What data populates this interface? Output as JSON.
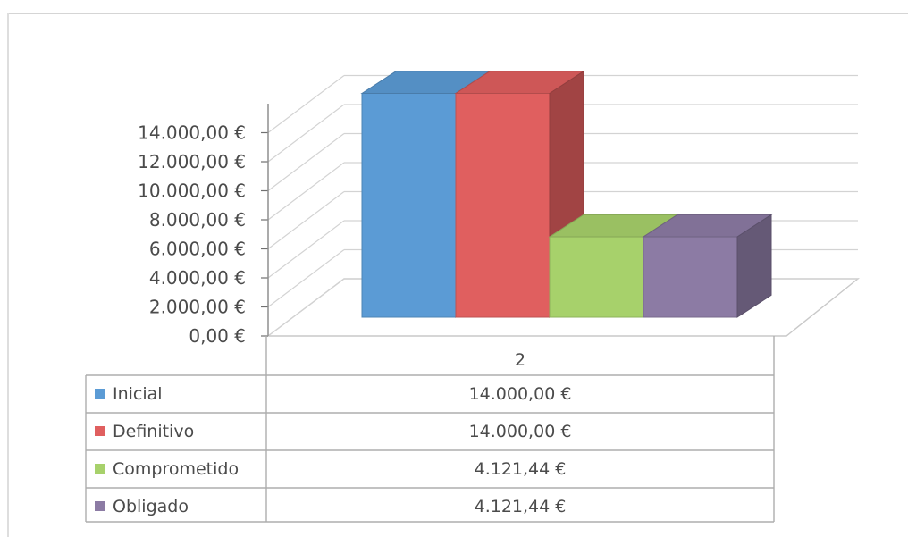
{
  "chart_data": {
    "type": "bar",
    "categories": [
      "2"
    ],
    "series": [
      {
        "name": "Inicial",
        "values": [
          14000
        ],
        "label": "14.000,00 €",
        "color": "#5b9bd5"
      },
      {
        "name": "Definitivo",
        "values": [
          14000
        ],
        "label": "14.000,00 €",
        "color": "#e05f5f"
      },
      {
        "name": "Comprometido",
        "values": [
          4121.44
        ],
        "label": "4.121,44 €",
        "color": "#a7d16b"
      },
      {
        "name": "Obligado",
        "values": [
          4121.44
        ],
        "label": "4.121,44 €",
        "color": "#8c7ba4"
      }
    ],
    "y_ticks": [
      {
        "value": 0,
        "label": "0,00 €"
      },
      {
        "value": 2000,
        "label": "2.000,00 €"
      },
      {
        "value": 4000,
        "label": "4.000,00 €"
      },
      {
        "value": 6000,
        "label": "6.000,00 €"
      },
      {
        "value": 8000,
        "label": "8.000,00 €"
      },
      {
        "value": 10000,
        "label": "10.000,00 €"
      },
      {
        "value": 12000,
        "label": "12.000,00 €"
      },
      {
        "value": 14000,
        "label": "14.000,00 €"
      }
    ],
    "ylim": [
      0,
      16000
    ],
    "grid": true,
    "legend": "data-table",
    "style": "3d-column"
  }
}
